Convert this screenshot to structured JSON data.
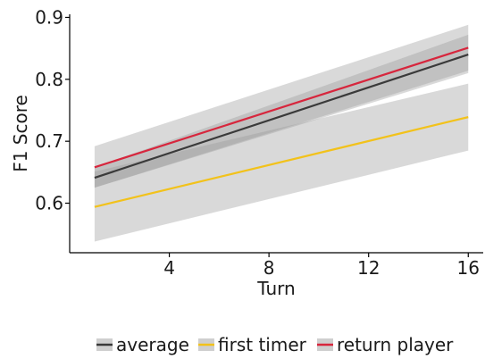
{
  "chart_data": {
    "type": "line",
    "title": "",
    "xlabel": "Turn",
    "ylabel": "F1 Score",
    "xlim": [
      0.0,
      16.6
    ],
    "ylim": [
      0.52,
      0.905
    ],
    "x_ticks": [
      4,
      8,
      12,
      16
    ],
    "y_ticks": [
      0.6,
      0.7,
      0.8,
      0.9
    ],
    "x_tick_labels": [
      "4",
      "8",
      "12",
      "16"
    ],
    "y_tick_labels": [
      "0.6",
      "0.7",
      "0.8",
      "0.9"
    ],
    "grid": false,
    "legend_position": "bottom",
    "x": [
      1,
      16
    ],
    "series": [
      {
        "name": "average",
        "color": "#3a3a3a",
        "values": [
          0.641,
          0.84
        ],
        "ci_lower": [
          0.625,
          0.81
        ],
        "ci_upper": [
          0.658,
          0.872
        ]
      },
      {
        "name": "first timer",
        "color": "#f2c21b",
        "values": [
          0.594,
          0.739
        ],
        "ci_lower": [
          0.538,
          0.685
        ],
        "ci_upper": [
          0.651,
          0.793
        ]
      },
      {
        "name": "return player",
        "color": "#d7263d",
        "values": [
          0.658,
          0.851
        ],
        "ci_lower": [
          0.625,
          0.814
        ],
        "ci_upper": [
          0.692,
          0.888
        ]
      }
    ]
  }
}
